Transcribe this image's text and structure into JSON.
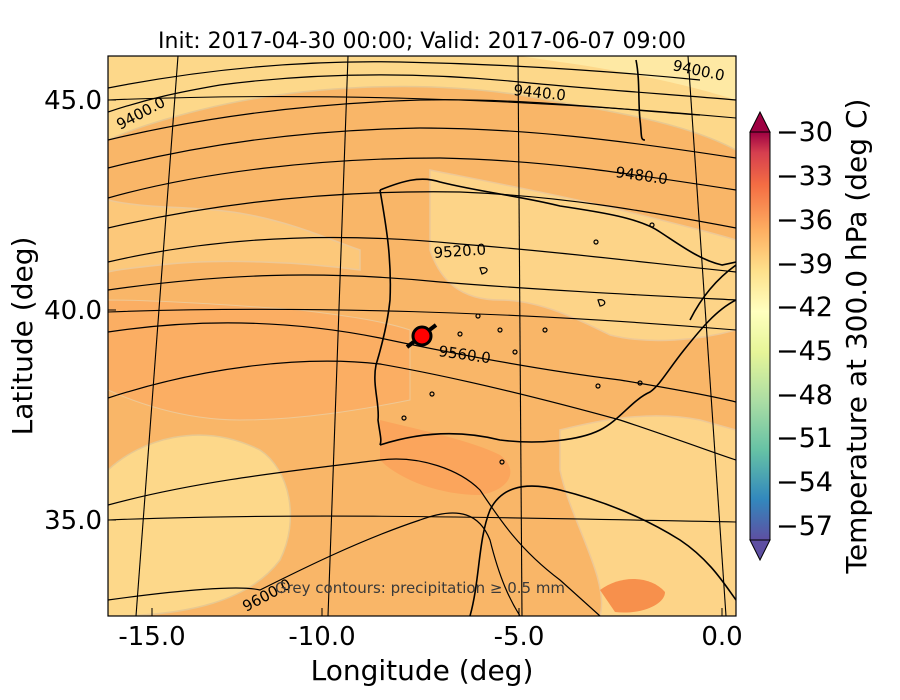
{
  "title": "Init: 2017-04-30 00:00; Valid: 2017-06-07 09:00",
  "xlabel": "Longitude (deg)",
  "ylabel": "Latitude (deg)",
  "x_ticks": [
    "-15.0",
    "-10.0",
    "-5.0",
    "0.0"
  ],
  "y_ticks": [
    "45.0",
    "40.0",
    "35.0"
  ],
  "colorbar": {
    "label": "Temperature at 300.0 hPa (deg C)",
    "ticks": [
      "−30",
      "−33",
      "−36",
      "−39",
      "−42",
      "−45",
      "−48",
      "−51",
      "−54",
      "−57"
    ],
    "range": [
      -58,
      -30
    ]
  },
  "contour_labels": [
    "9400.0",
    "9400.0",
    "9440.0",
    "9480.0",
    "9520.0",
    "9560.0",
    "9600.0"
  ],
  "note": "Grey contours: precipitation ≥ 0.5 mm",
  "map": {
    "lon_range": [
      -16,
      0.2
    ],
    "lat_range": [
      32.8,
      46
    ],
    "marker_color": "#ff0000",
    "marker_location": {
      "lon": -7.6,
      "lat": 39.4
    }
  }
}
